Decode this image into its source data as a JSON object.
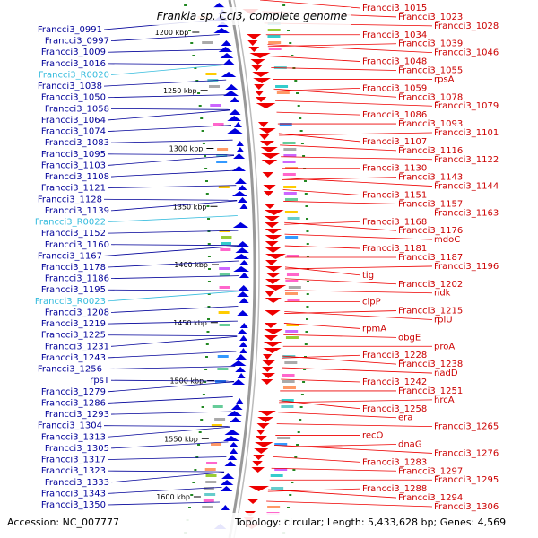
{
  "title": "Frankia sp. CcI3, complete genome",
  "accession": "Accession: NC_007777",
  "topology": "Topology: circular; Length: 5,433,628 bp; Genes: 4,569",
  "colors": {
    "forward": "#0000dd",
    "reverse": "#ee0000",
    "rna": "#33bbdd",
    "tick": "#228822",
    "backbone": "#999999"
  },
  "ticks": [
    {
      "label": "1200 kbp",
      "y": 1200
    },
    {
      "label": "1250 kbp",
      "y": 1250
    },
    {
      "label": "1300 kbp",
      "y": 1300
    },
    {
      "label": "1350 kbp",
      "y": 1350
    },
    {
      "label": "1400 kbp",
      "y": 1400
    },
    {
      "label": "1450 kbp",
      "y": 1450
    },
    {
      "label": "1500 kbp",
      "y": 1500
    },
    {
      "label": "1550 kbp",
      "y": 1550
    },
    {
      "label": "1600 kbp",
      "y": 1600
    }
  ],
  "left_labels": [
    {
      "text": "Francci3_0991",
      "kind": "gene"
    },
    {
      "text": "Francci3_0997",
      "kind": "gene"
    },
    {
      "text": "Francci3_1009",
      "kind": "gene"
    },
    {
      "text": "Francci3_1016",
      "kind": "gene"
    },
    {
      "text": "Francci3_R0020",
      "kind": "rna"
    },
    {
      "text": "Francci3_1038",
      "kind": "gene"
    },
    {
      "text": "Francci3_1050",
      "kind": "gene"
    },
    {
      "text": "Francci3_1058",
      "kind": "gene"
    },
    {
      "text": "Francci3_1064",
      "kind": "gene"
    },
    {
      "text": "Francci3_1074",
      "kind": "gene"
    },
    {
      "text": "Francci3_1083",
      "kind": "gene"
    },
    {
      "text": "Francci3_1095",
      "kind": "gene"
    },
    {
      "text": "Francci3_1103",
      "kind": "gene"
    },
    {
      "text": "Francci3_1108",
      "kind": "gene"
    },
    {
      "text": "Francci3_1121",
      "kind": "gene"
    },
    {
      "text": "Francci3_1128",
      "kind": "gene"
    },
    {
      "text": "Francci3_1139",
      "kind": "gene"
    },
    {
      "text": "Francci3_R0022",
      "kind": "rna"
    },
    {
      "text": "Francci3_1152",
      "kind": "gene"
    },
    {
      "text": "Francci3_1160",
      "kind": "gene"
    },
    {
      "text": "Francci3_1167",
      "kind": "gene"
    },
    {
      "text": "Francci3_1178",
      "kind": "gene"
    },
    {
      "text": "Francci3_1186",
      "kind": "gene"
    },
    {
      "text": "Francci3_1195",
      "kind": "gene"
    },
    {
      "text": "Francci3_R0023",
      "kind": "rna"
    },
    {
      "text": "Francci3_1208",
      "kind": "gene"
    },
    {
      "text": "Francci3_1219",
      "kind": "gene"
    },
    {
      "text": "Francci3_1225",
      "kind": "gene"
    },
    {
      "text": "Francci3_1231",
      "kind": "gene"
    },
    {
      "text": "Francci3_1243",
      "kind": "gene"
    },
    {
      "text": "Francci3_1256",
      "kind": "gene"
    },
    {
      "text": "rpsT",
      "kind": "gene"
    },
    {
      "text": "Francci3_1279",
      "kind": "gene"
    },
    {
      "text": "Francci3_1286",
      "kind": "gene"
    },
    {
      "text": "Francci3_1293",
      "kind": "gene"
    },
    {
      "text": "Francci3_1304",
      "kind": "gene"
    },
    {
      "text": "Francci3_1313",
      "kind": "gene"
    },
    {
      "text": "Francci3_1305",
      "kind": "gene"
    },
    {
      "text": "Francci3_1317",
      "kind": "gene"
    },
    {
      "text": "Francci3_1323",
      "kind": "gene"
    },
    {
      "text": "Francci3_1333",
      "kind": "gene"
    },
    {
      "text": "Francci3_1343",
      "kind": "gene"
    },
    {
      "text": "Francci3_1350",
      "kind": "gene"
    }
  ],
  "right_labels": [
    {
      "text": "Francci3_1015"
    },
    {
      "text": "Francci3_1023"
    },
    {
      "text": "Francci3_1028"
    },
    {
      "text": "Francci3_1034"
    },
    {
      "text": "Francci3_1039"
    },
    {
      "text": "Francci3_1046"
    },
    {
      "text": "Francci3_1048"
    },
    {
      "text": "Francci3_1055"
    },
    {
      "text": "rpsA"
    },
    {
      "text": "Francci3_1059"
    },
    {
      "text": "Francci3_1078"
    },
    {
      "text": "Francci3_1079"
    },
    {
      "text": "Francci3_1086"
    },
    {
      "text": "Francci3_1093"
    },
    {
      "text": "Francci3_1101"
    },
    {
      "text": "Francci3_1107"
    },
    {
      "text": "Francci3_1116"
    },
    {
      "text": "Francci3_1122"
    },
    {
      "text": "Francci3_1130"
    },
    {
      "text": "Francci3_1143"
    },
    {
      "text": "Francci3_1144"
    },
    {
      "text": "Francci3_1151"
    },
    {
      "text": "Francci3_1157"
    },
    {
      "text": "Francci3_1163"
    },
    {
      "text": "Francci3_1168"
    },
    {
      "text": "Francci3_1176"
    },
    {
      "text": "mdoC"
    },
    {
      "text": "Francci3_1181"
    },
    {
      "text": "Francci3_1187"
    },
    {
      "text": "Francci3_1196"
    },
    {
      "text": "tig"
    },
    {
      "text": "Francci3_1202"
    },
    {
      "text": "ndk"
    },
    {
      "text": "clpP"
    },
    {
      "text": "Francci3_1215"
    },
    {
      "text": "rplU"
    },
    {
      "text": "rpmA"
    },
    {
      "text": "obgE"
    },
    {
      "text": "proA"
    },
    {
      "text": "Francci3_1228"
    },
    {
      "text": "Francci3_1238"
    },
    {
      "text": "nadD"
    },
    {
      "text": "Francci3_1242"
    },
    {
      "text": "Francci3_1251"
    },
    {
      "text": "hrcA"
    },
    {
      "text": "Francci3_1258"
    },
    {
      "text": "era"
    },
    {
      "text": "Francci3_1265"
    },
    {
      "text": "recO"
    },
    {
      "text": "dnaG"
    },
    {
      "text": "Francci3_1276"
    },
    {
      "text": "Francci3_1283"
    },
    {
      "text": "Francci3_1297"
    },
    {
      "text": "Francci3_1295"
    },
    {
      "text": "Francci3_1288"
    },
    {
      "text": "Francci3_1294"
    },
    {
      "text": "Francci3_1306"
    }
  ]
}
